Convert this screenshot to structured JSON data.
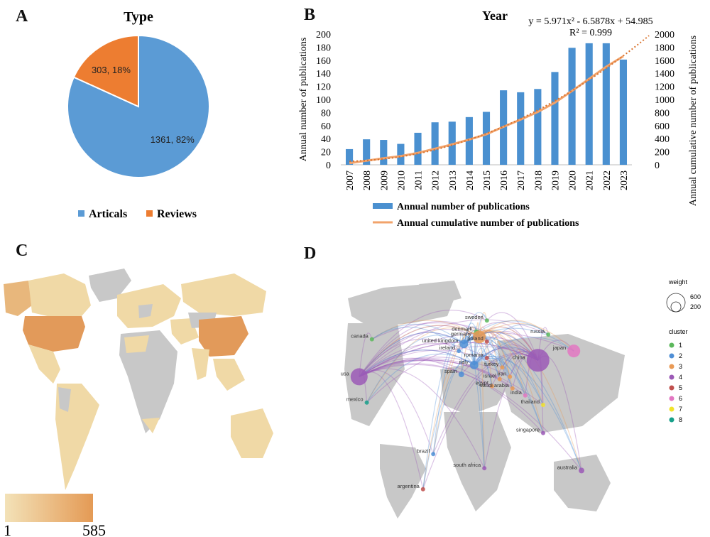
{
  "panels": {
    "a": "A",
    "b": "B",
    "c": "C",
    "d": "D"
  },
  "colors": {
    "articals": "#5b9bd5",
    "reviews": "#ed7d31",
    "bar": "#4a90d0",
    "cumulative": "#f2a36b",
    "map_gray": "#c8c8c8",
    "map_low": "#f0d9a6",
    "map_high": "#e29a5a"
  },
  "chart_data": [
    {
      "type": "pie",
      "title": "Type",
      "slices": [
        {
          "name": "Articals",
          "value": 1361,
          "label": "1361, 82%",
          "color": "#5b9bd5"
        },
        {
          "name": "Reviews",
          "value": 303,
          "label": "303, 18%",
          "color": "#ed7d31"
        }
      ],
      "legend_position": "bottom"
    },
    {
      "type": "bar",
      "title": "Year",
      "equation": "y = 5.971x² - 6.5878x + 54.985",
      "r_squared": "R² = 0.999",
      "categories": [
        "2007",
        "2008",
        "2009",
        "2010",
        "2011",
        "2012",
        "2013",
        "2014",
        "2015",
        "2016",
        "2017",
        "2018",
        "2019",
        "2020",
        "2021",
        "2022",
        "2023"
      ],
      "series": [
        {
          "name": "Annual number of publications",
          "type": "bar",
          "axis": "left",
          "values": [
            24,
            39,
            38,
            32,
            49,
            65,
            66,
            73,
            81,
            114,
            111,
            116,
            142,
            179,
            186,
            186,
            161
          ]
        },
        {
          "name": "Annual cumulative number of publications",
          "type": "line",
          "axis": "right",
          "values": [
            24,
            63,
            101,
            133,
            182,
            247,
            313,
            386,
            467,
            581,
            692,
            808,
            950,
            1129,
            1315,
            1501,
            1662
          ]
        }
      ],
      "ylabel": "Annual number of publications",
      "y2label": "Annual cumulative number of publications",
      "ylim": [
        0,
        200
      ],
      "y2lim": [
        0,
        2000
      ],
      "yticks": [
        0,
        20,
        40,
        60,
        80,
        100,
        120,
        140,
        160,
        180,
        200
      ],
      "y2ticks": [
        0,
        200,
        400,
        600,
        800,
        1000,
        1200,
        1400,
        1600,
        1800,
        2000
      ]
    },
    {
      "type": "heatmap",
      "subtype": "choropleth-world-map",
      "scale_min": "1",
      "scale_max": "585",
      "highlighted": [
        "usa",
        "china",
        "canada",
        "australia",
        "brazil"
      ]
    },
    {
      "type": "scatter",
      "subtype": "country-collaboration-network",
      "nodes": [
        {
          "label": "usa",
          "cluster": 4,
          "x": 0.03,
          "y": 0.38
        },
        {
          "label": "china",
          "cluster": 4,
          "x": 0.73,
          "y": 0.31
        },
        {
          "label": "canada",
          "cluster": 1,
          "x": 0.08,
          "y": 0.22
        },
        {
          "label": "mexico",
          "cluster": 8,
          "x": 0.06,
          "y": 0.49
        },
        {
          "label": "brazil",
          "cluster": 2,
          "x": 0.32,
          "y": 0.71
        },
        {
          "label": "argentina",
          "cluster": 5,
          "x": 0.28,
          "y": 0.86
        },
        {
          "label": "united kingdom",
          "cluster": 2,
          "x": 0.44,
          "y": 0.24
        },
        {
          "label": "ireland",
          "cluster": 2,
          "x": 0.42,
          "y": 0.27
        },
        {
          "label": "denmark",
          "cluster": 1,
          "x": 0.49,
          "y": 0.19
        },
        {
          "label": "sweden",
          "cluster": 1,
          "x": 0.53,
          "y": 0.14
        },
        {
          "label": "germany",
          "cluster": 3,
          "x": 0.5,
          "y": 0.21
        },
        {
          "label": "poland",
          "cluster": 5,
          "x": 0.53,
          "y": 0.23
        },
        {
          "label": "romania",
          "cluster": 5,
          "x": 0.53,
          "y": 0.3
        },
        {
          "label": "spain",
          "cluster": 2,
          "x": 0.43,
          "y": 0.37
        },
        {
          "label": "italy",
          "cluster": 2,
          "x": 0.48,
          "y": 0.33
        },
        {
          "label": "turkey",
          "cluster": 3,
          "x": 0.59,
          "y": 0.34
        },
        {
          "label": "israel",
          "cluster": 3,
          "x": 0.58,
          "y": 0.39
        },
        {
          "label": "iran",
          "cluster": 3,
          "x": 0.62,
          "y": 0.38
        },
        {
          "label": "egypt",
          "cluster": 3,
          "x": 0.55,
          "y": 0.42
        },
        {
          "label": "saudi arabia",
          "cluster": 3,
          "x": 0.63,
          "y": 0.43
        },
        {
          "label": "india",
          "cluster": 6,
          "x": 0.68,
          "y": 0.46
        },
        {
          "label": "russia",
          "cluster": 1,
          "x": 0.77,
          "y": 0.2
        },
        {
          "label": "japan",
          "cluster": 6,
          "x": 0.87,
          "y": 0.27
        },
        {
          "label": "thailand",
          "cluster": 7,
          "x": 0.75,
          "y": 0.5
        },
        {
          "label": "singapore",
          "cluster": 4,
          "x": 0.75,
          "y": 0.62
        },
        {
          "label": "south africa",
          "cluster": 4,
          "x": 0.52,
          "y": 0.77
        },
        {
          "label": "australia",
          "cluster": 4,
          "x": 0.9,
          "y": 0.78
        }
      ],
      "weight_legend": {
        "title": "weight",
        "values": [
          "600",
          "200"
        ]
      },
      "cluster_legend": {
        "title": "cluster",
        "items": [
          {
            "label": "1",
            "color": "#5cb85c"
          },
          {
            "label": "2",
            "color": "#4f8fd6"
          },
          {
            "label": "3",
            "color": "#e99a55"
          },
          {
            "label": "4",
            "color": "#9b59b6"
          },
          {
            "label": "5",
            "color": "#c0504d"
          },
          {
            "label": "6",
            "color": "#e377c2"
          },
          {
            "label": "7",
            "color": "#f1e32c"
          },
          {
            "label": "8",
            "color": "#17a08a"
          }
        ]
      }
    }
  ]
}
